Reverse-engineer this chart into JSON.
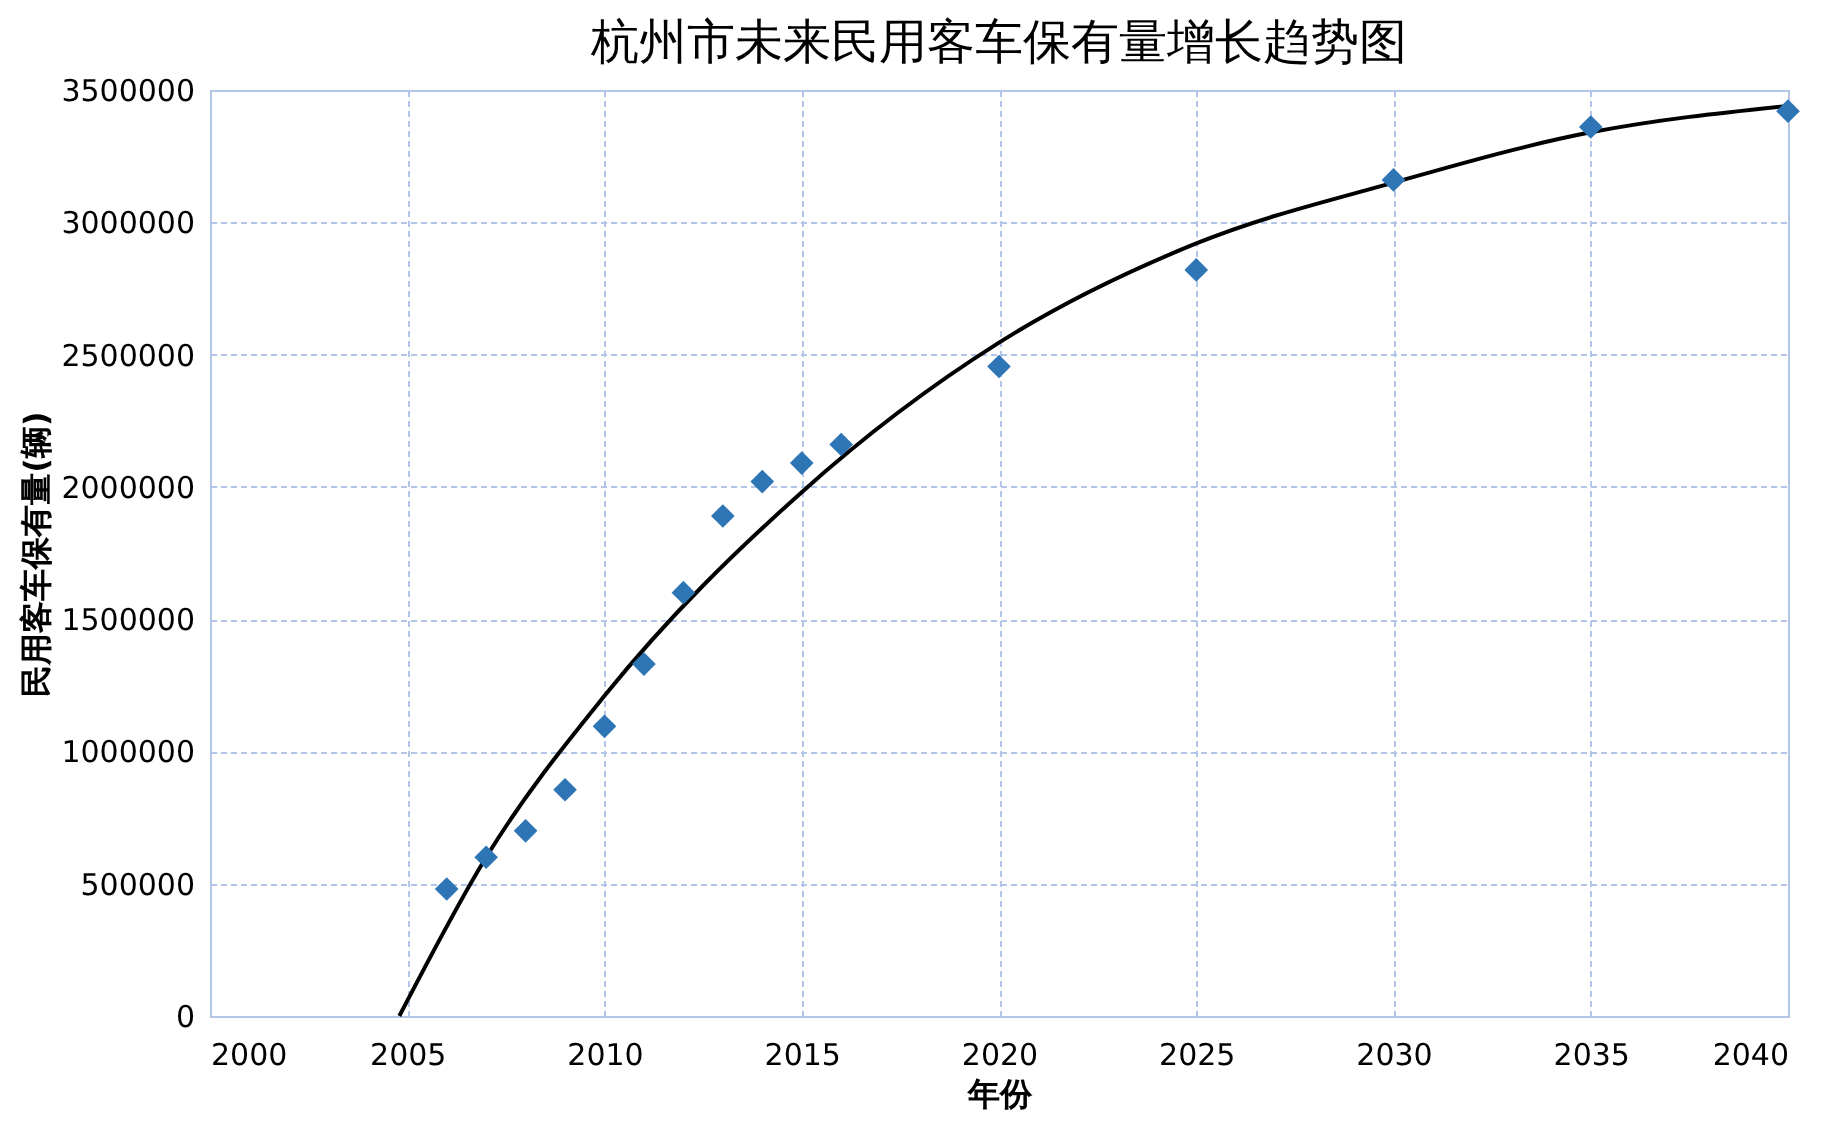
{
  "chart_data": {
    "type": "scatter",
    "title": "杭州市未来民用客车保有量增长趋势图",
    "xlabel": "年份",
    "ylabel": "民用客车保有量(辆)",
    "x": [
      2006,
      2007,
      2008,
      2009,
      2010,
      2011,
      2012,
      2013,
      2014,
      2015,
      2016,
      2020,
      2025,
      2030,
      2035,
      2040
    ],
    "series": [
      {
        "color": "#2e75b6",
        "marker": "diamond",
        "values": [
          480000,
          600000,
          700000,
          855000,
          1095000,
          1330000,
          1600000,
          1890000,
          2020000,
          2090000,
          2160000,
          2455000,
          2820000,
          3160000,
          3360000,
          3420000
        ]
      },
      {
        "type": "line",
        "color": "#000000",
        "marker": "none",
        "x": [
          2004.8,
          2007,
          2010,
          2015,
          2020,
          2025,
          2030,
          2035,
          2040
        ],
        "values": [
          0,
          600000,
          1210000,
          1980000,
          2545000,
          2920000,
          3150000,
          3340000,
          3440000
        ]
      }
    ],
    "xlim": [
      2000,
      2040
    ],
    "xticks": [
      2000,
      2005,
      2010,
      2015,
      2020,
      2025,
      2030,
      2035,
      2040
    ],
    "ylim": [
      0,
      3500000
    ],
    "yticks": [
      0,
      500000,
      1000000,
      1500000,
      2000000,
      2500000,
      3000000,
      3500000
    ],
    "grid": true
  }
}
